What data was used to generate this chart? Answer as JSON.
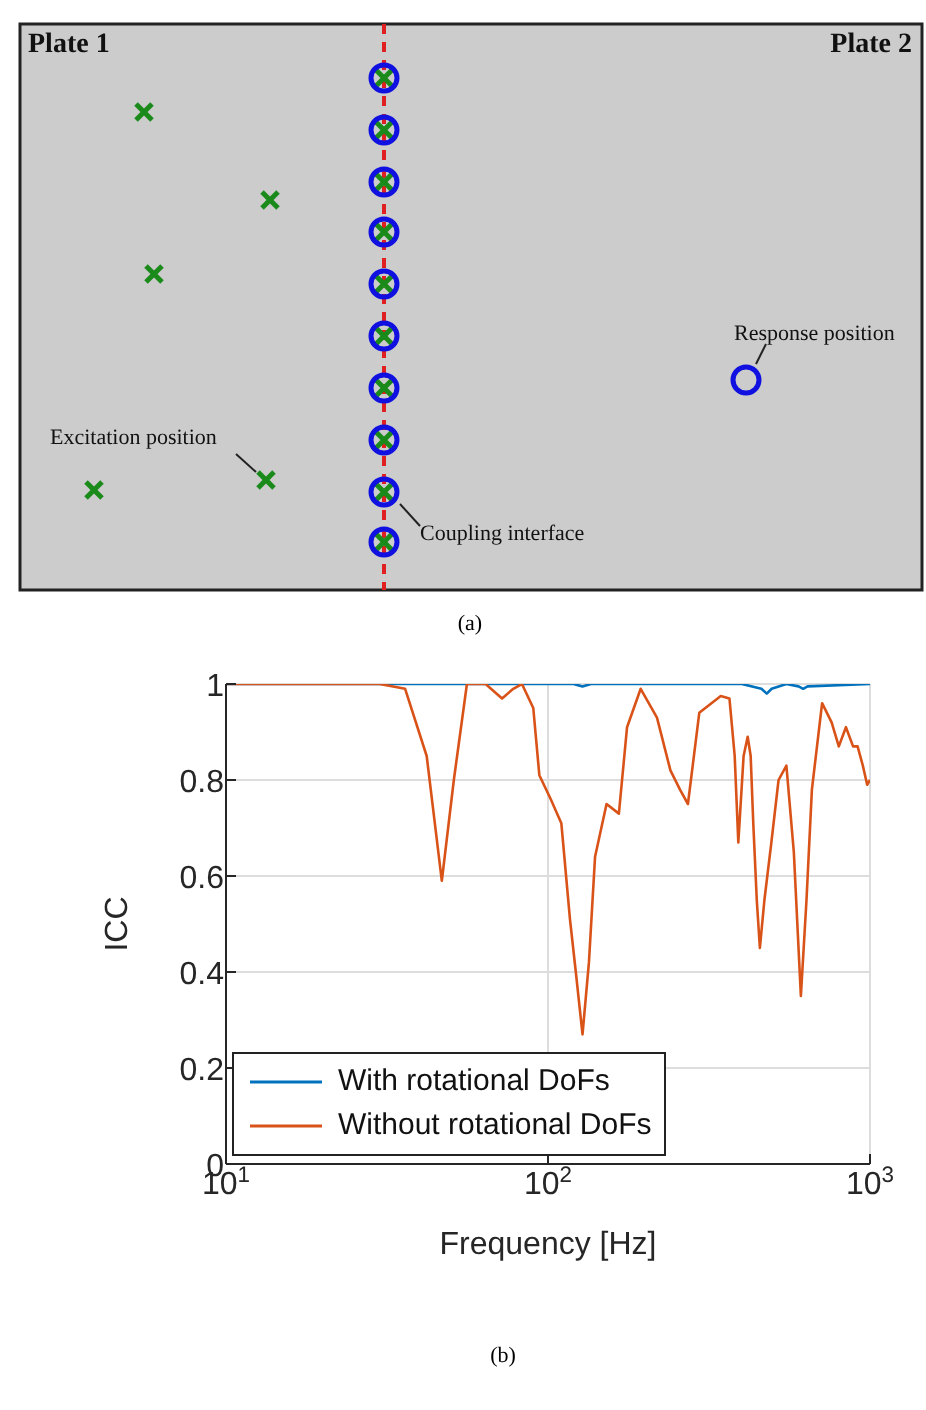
{
  "chart_data": [
    {
      "type": "other",
      "annotations": [
        "Plate 1",
        "Plate 2",
        "Excitation position",
        "Coupling interface",
        "Response position",
        "(a)"
      ]
    },
    {
      "type": "line",
      "xlabel": "Frequency [Hz]",
      "ylabel": "ICC",
      "log": "x",
      "grid": true,
      "legend": "bottom left",
      "marker": "none",
      "line_style": "solid",
      "xlim": [
        10,
        1000
      ],
      "xticks": [
        {
          "value": 10,
          "label": "10$^{1}$"
        },
        {
          "value": 100,
          "label": "10$^{2}$"
        },
        {
          "value": 1000,
          "label": "10$^{3}$"
        }
      ],
      "ylim": [
        0,
        1
      ],
      "yticks": [
        0,
        0.2,
        0.4,
        0.6,
        0.8,
        1
      ],
      "series": [
        {
          "name": "With rotational DoFs",
          "color": "#0072bd",
          "x": [
            10,
            100,
            120,
            128,
            136,
            150,
            400,
            460,
            478,
            495,
            550,
            600,
            620,
            640,
            1000
          ],
          "values": [
            1,
            1,
            1,
            0.995,
            1,
            1,
            1,
            0.99,
            0.98,
            0.99,
            1,
            0.995,
            0.99,
            0.995,
            1
          ]
        },
        {
          "name": "Without rotational DoFs",
          "color": "#d95319",
          "x": [
            10,
            30,
            36,
            42,
            46.8,
            51,
            56,
            64,
            72,
            78,
            83,
            90,
            94,
            102,
            110,
            117,
            122,
            128,
            134,
            140,
            152,
            166,
            176,
            194,
            218,
            240,
            257,
            272,
            295,
            344,
            366,
            380,
            390,
            405,
            417,
            426,
            434,
            445,
            455,
            470,
            494,
            520,
            550,
            580,
            610,
            635,
            660,
            710,
            760,
            800,
            842,
            886,
            915,
            950,
            980,
            1000
          ],
          "values": [
            1,
            1,
            0.99,
            0.85,
            0.59,
            0.8,
            1,
            1,
            0.97,
            0.99,
            1,
            0.95,
            0.81,
            0.76,
            0.71,
            0.51,
            0.4,
            0.27,
            0.42,
            0.64,
            0.75,
            0.73,
            0.91,
            0.99,
            0.93,
            0.82,
            0.78,
            0.75,
            0.94,
            0.975,
            0.97,
            0.85,
            0.67,
            0.85,
            0.89,
            0.85,
            0.71,
            0.55,
            0.45,
            0.55,
            0.67,
            0.8,
            0.83,
            0.65,
            0.35,
            0.55,
            0.78,
            0.96,
            0.92,
            0.87,
            0.91,
            0.87,
            0.87,
            0.83,
            0.79,
            0.8
          ]
        }
      ],
      "annotations": [
        "(b)"
      ]
    }
  ]
}
